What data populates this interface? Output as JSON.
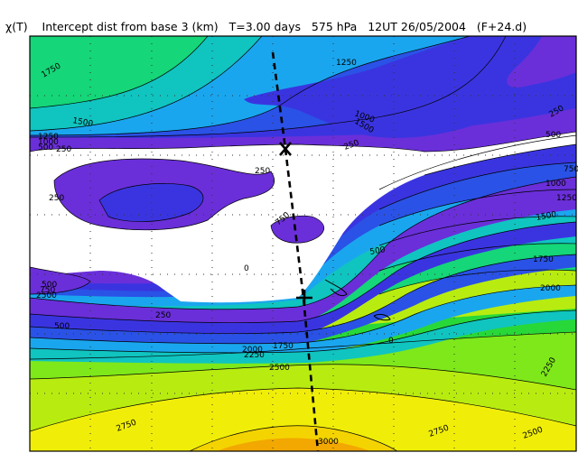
{
  "title": "χ(T)    Intercept dist from base 3 (km)   T=3.00 days   575 hPa   12UT 26/05/2004   (F+24.d)",
  "contour_labels": [
    {
      "name": "label-1750-topleft",
      "text": "1750"
    },
    {
      "name": "label-1250-top",
      "text": "1250"
    },
    {
      "name": "label-1500-left",
      "text": "1500"
    },
    {
      "name": "label-1250-left",
      "text": "1250"
    },
    {
      "name": "label-1000-left",
      "text": "1000"
    },
    {
      "name": "label-500-left",
      "text": "500"
    },
    {
      "name": "label-250-left",
      "text": "250"
    },
    {
      "name": "label-1000-mid",
      "text": "1000"
    },
    {
      "name": "label-1500-mid",
      "text": "1500"
    },
    {
      "name": "label-250-mid",
      "text": "250"
    },
    {
      "name": "label-250-right",
      "text": "250"
    },
    {
      "name": "label-500-right",
      "text": "500"
    },
    {
      "name": "label-750-right",
      "text": "750"
    },
    {
      "name": "label-1000-right",
      "text": "1000"
    },
    {
      "name": "label-1250-right",
      "text": "1250"
    },
    {
      "name": "label-1500-right",
      "text": "1500"
    },
    {
      "name": "label-250-center",
      "text": "250"
    },
    {
      "name": "label-750-band",
      "text": "750"
    },
    {
      "name": "label-500-band",
      "text": "500"
    },
    {
      "name": "label-1750-right",
      "text": "1750"
    },
    {
      "name": "label-2000-right",
      "text": "2000"
    },
    {
      "name": "label-250-lowerleft",
      "text": "250"
    },
    {
      "name": "label-500-lowerleft",
      "text": "500"
    },
    {
      "name": "label-750-lowerleft",
      "text": "750"
    },
    {
      "name": "label-2500-lowerleft",
      "text": "2500"
    },
    {
      "name": "label-500-center",
      "text": "500"
    },
    {
      "name": "label-250-lowcenter",
      "text": "250"
    },
    {
      "name": "label-1750-lowcenter",
      "text": "1750"
    },
    {
      "name": "label-2000-low",
      "text": "2000"
    },
    {
      "name": "label-2250-low",
      "text": "2250"
    },
    {
      "name": "label-2500-low",
      "text": "2500"
    },
    {
      "name": "label-2250-right",
      "text": "2250"
    },
    {
      "name": "label-2500-right",
      "text": "2500"
    },
    {
      "name": "label-2750-left",
      "text": "2750"
    },
    {
      "name": "label-2750-right",
      "text": "2750"
    },
    {
      "name": "label-3000-bottom",
      "text": "3000"
    },
    {
      "name": "label-0-a",
      "text": "0"
    },
    {
      "name": "label-0-b",
      "text": "0"
    }
  ],
  "colors": {
    "green_top": "#15d678",
    "teal": "#10c4c0",
    "sky": "#1aa6ee",
    "blue": "#2a52e6",
    "indigo": "#3a34e0",
    "violet": "#6a2fd9",
    "purple": "#7a2fd0",
    "green": "#28d838",
    "lime": "#7ee81a",
    "yellowgreen": "#b8ec10",
    "yellow": "#f0ee08",
    "gold": "#f4d400",
    "orange": "#f2a800",
    "frame": "#000000"
  }
}
